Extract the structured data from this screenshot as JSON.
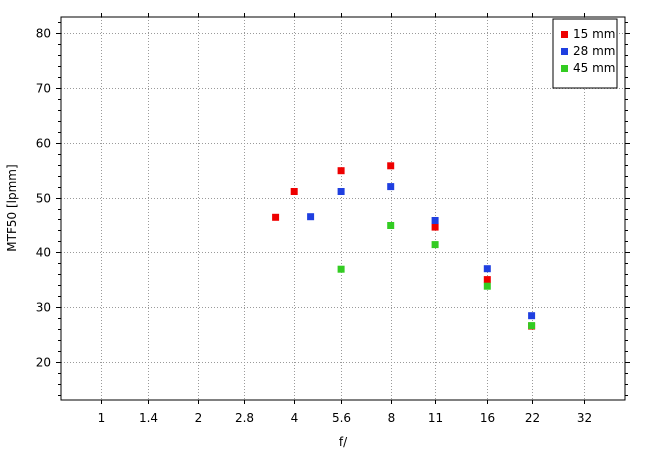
{
  "chart_data": {
    "type": "scatter",
    "title": "",
    "xlabel": "f/",
    "ylabel": "MTF50 [lpmm]",
    "x_scale": "log2",
    "x_ticks": [
      1,
      1.4,
      2,
      2.8,
      4,
      5.6,
      8,
      11,
      16,
      22,
      32
    ],
    "x_tick_labels": [
      "1",
      "1.4",
      "2",
      "2.8",
      "4",
      "5.6",
      "8",
      "11",
      "16",
      "22",
      "32"
    ],
    "xlim": [
      0.75,
      43
    ],
    "y_ticks": [
      20,
      30,
      40,
      50,
      60,
      70,
      80
    ],
    "y_tick_labels": [
      "20",
      "30",
      "40",
      "50",
      "60",
      "70",
      "80"
    ],
    "ylim": [
      13,
      83
    ],
    "grid": true,
    "legend_position": "top-right",
    "series": [
      {
        "name": "15 mm",
        "color": "#ee0000",
        "points": [
          [
            3.5,
            46.4
          ],
          [
            4.0,
            51.1
          ],
          [
            5.6,
            54.9
          ],
          [
            8.0,
            55.8
          ],
          [
            11.0,
            44.6
          ],
          [
            16.0,
            35.0
          ],
          [
            22.0,
            26.5
          ]
        ]
      },
      {
        "name": "28 mm",
        "color": "#1f3fe0",
        "points": [
          [
            4.5,
            46.5
          ],
          [
            5.6,
            51.1
          ],
          [
            8.0,
            52.0
          ],
          [
            11.0,
            45.8
          ],
          [
            16.0,
            37.0
          ],
          [
            22.0,
            28.4
          ]
        ]
      },
      {
        "name": "45 mm",
        "color": "#33cc22",
        "points": [
          [
            5.6,
            36.9
          ],
          [
            8.0,
            44.9
          ],
          [
            11.0,
            41.4
          ],
          [
            16.0,
            33.8
          ],
          [
            22.0,
            26.6
          ]
        ]
      }
    ]
  }
}
